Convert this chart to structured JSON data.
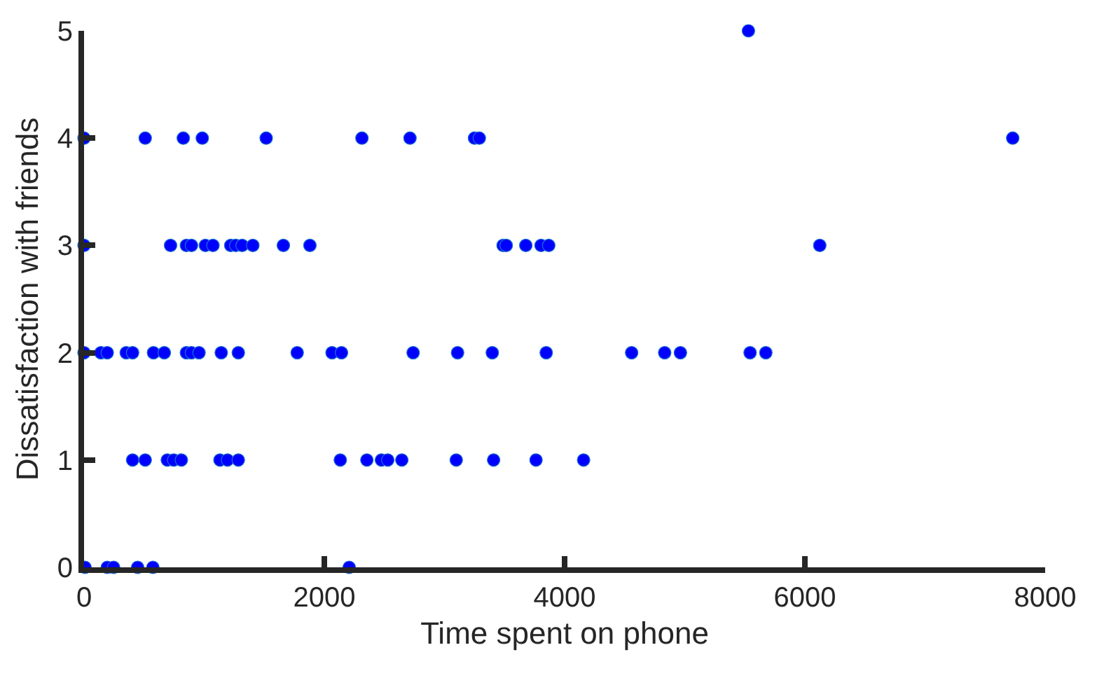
{
  "chart_data": {
    "type": "scatter",
    "xlabel": "Time spent on phone",
    "ylabel": "Dissatisfaction with friends",
    "xlim": [
      0,
      8000
    ],
    "ylim": [
      0,
      5
    ],
    "xticks": [
      0,
      2000,
      4000,
      6000,
      8000
    ],
    "yticks": [
      0,
      1,
      2,
      3,
      4,
      5
    ],
    "marker": "circle",
    "series": [
      {
        "color": "#0000ff",
        "x": [
          0,
          509,
          826,
          984,
          1516,
          2313,
          2713,
          3250,
          3290,
          7730,
          5530,
          0,
          720,
          852,
          894,
          1010,
          1073,
          1221,
          1263,
          1316,
          1405,
          1659,
          1880,
          3488,
          3514,
          3677,
          3804,
          3868,
          6124,
          0,
          140,
          193,
          351,
          404,
          578,
          668,
          852,
          894,
          957,
          1142,
          1284,
          1774,
          2064,
          2143,
          2739,
          3109,
          3398,
          3847,
          4558,
          4833,
          4964,
          5544,
          5675,
          404,
          509,
          693,
          746,
          810,
          1131,
          1194,
          1284,
          2133,
          2354,
          2475,
          2528,
          2645,
          3098,
          3409,
          3762,
          4158,
          8,
          193,
          246,
          446,
          573,
          2207
        ],
        "values": [
          4,
          4,
          4,
          4,
          4,
          4,
          4,
          4,
          4,
          4,
          5,
          3,
          3,
          3,
          3,
          3,
          3,
          3,
          3,
          3,
          3,
          3,
          3,
          3,
          3,
          3,
          3,
          3,
          3,
          2,
          2,
          2,
          2,
          2,
          2,
          2,
          2,
          2,
          2,
          2,
          2,
          2,
          2,
          2,
          2,
          2,
          2,
          2,
          2,
          2,
          2,
          2,
          2,
          1,
          1,
          1,
          1,
          1,
          1,
          1,
          1,
          1,
          1,
          1,
          1,
          1,
          1,
          1,
          1,
          1,
          0,
          0,
          0,
          0,
          0,
          0
        ]
      }
    ]
  }
}
